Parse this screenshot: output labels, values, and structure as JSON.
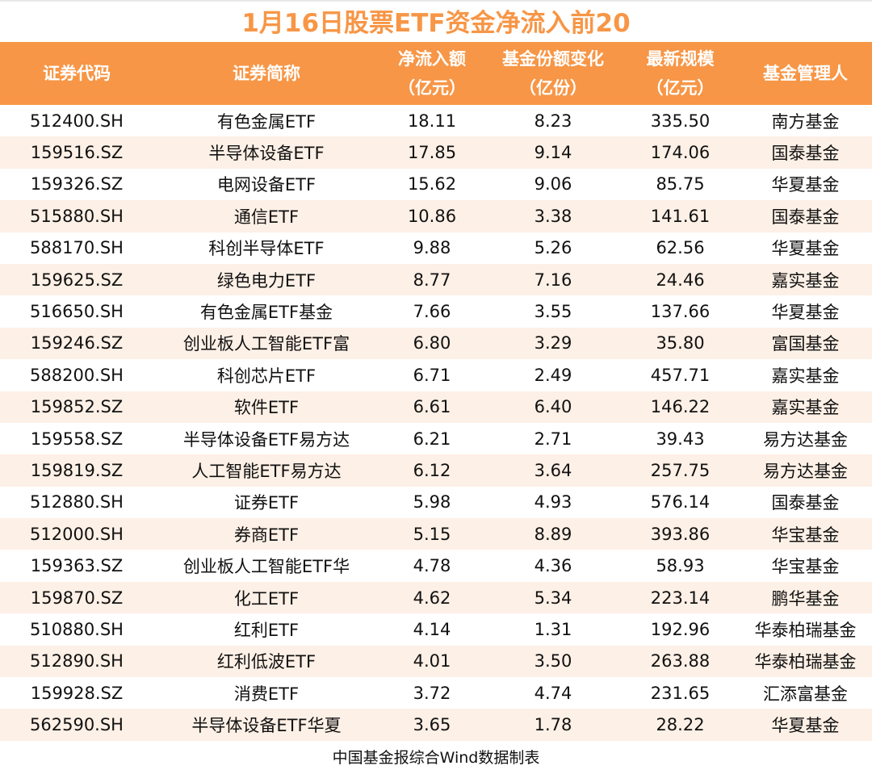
{
  "title": "1月16日股票ETF资金净流入前20",
  "colors": {
    "header_bg": "#F79646",
    "title": "#F79646",
    "alt_row": "#FDF0E6"
  },
  "chart_data": {
    "type": "table",
    "title": "1月16日股票ETF资金净流入前20",
    "columns": [
      {
        "line1": "证券代码",
        "line2": ""
      },
      {
        "line1": "证券简称",
        "line2": ""
      },
      {
        "line1": "净流入额",
        "line2": "（亿元）"
      },
      {
        "line1": "基金份额变化",
        "line2": "（亿份）"
      },
      {
        "line1": "最新规模",
        "line2": "（亿元）"
      },
      {
        "line1": "基金管理人",
        "line2": ""
      }
    ],
    "rows": [
      [
        "512400.SH",
        "有色金属ETF",
        "18.11",
        "8.23",
        "335.50",
        "南方基金"
      ],
      [
        "159516.SZ",
        "半导体设备ETF",
        "17.85",
        "9.14",
        "174.06",
        "国泰基金"
      ],
      [
        "159326.SZ",
        "电网设备ETF",
        "15.62",
        "9.06",
        "85.75",
        "华夏基金"
      ],
      [
        "515880.SH",
        "通信ETF",
        "10.86",
        "3.38",
        "141.61",
        "国泰基金"
      ],
      [
        "588170.SH",
        "科创半导体ETF",
        "9.88",
        "5.26",
        "62.56",
        "华夏基金"
      ],
      [
        "159625.SZ",
        "绿色电力ETF",
        "8.77",
        "7.16",
        "24.46",
        "嘉实基金"
      ],
      [
        "516650.SH",
        "有色金属ETF基金",
        "7.66",
        "3.55",
        "137.66",
        "华夏基金"
      ],
      [
        "159246.SZ",
        "创业板人工智能ETF富",
        "6.80",
        "3.29",
        "35.80",
        "富国基金"
      ],
      [
        "588200.SH",
        "科创芯片ETF",
        "6.71",
        "2.49",
        "457.71",
        "嘉实基金"
      ],
      [
        "159852.SZ",
        "软件ETF",
        "6.61",
        "6.40",
        "146.22",
        "嘉实基金"
      ],
      [
        "159558.SZ",
        "半导体设备ETF易方达",
        "6.21",
        "2.71",
        "39.43",
        "易方达基金"
      ],
      [
        "159819.SZ",
        "人工智能ETF易方达",
        "6.12",
        "3.64",
        "257.75",
        "易方达基金"
      ],
      [
        "512880.SH",
        "证券ETF",
        "5.98",
        "4.93",
        "576.14",
        "国泰基金"
      ],
      [
        "512000.SH",
        "券商ETF",
        "5.15",
        "8.89",
        "393.86",
        "华宝基金"
      ],
      [
        "159363.SZ",
        "创业板人工智能ETF华",
        "4.78",
        "4.36",
        "58.93",
        "华宝基金"
      ],
      [
        "159870.SZ",
        "化工ETF",
        "4.62",
        "5.34",
        "223.14",
        "鹏华基金"
      ],
      [
        "510880.SH",
        "红利ETF",
        "4.14",
        "1.31",
        "192.96",
        "华泰柏瑞基金"
      ],
      [
        "512890.SH",
        "红利低波ETF",
        "4.01",
        "3.50",
        "263.88",
        "华泰柏瑞基金"
      ],
      [
        "159928.SZ",
        "消费ETF",
        "3.72",
        "4.74",
        "231.65",
        "汇添富基金"
      ],
      [
        "562590.SH",
        "半导体设备ETF华夏",
        "3.65",
        "1.78",
        "28.22",
        "华夏基金"
      ]
    ]
  },
  "footer": "中国基金报综合Wind数据制表"
}
